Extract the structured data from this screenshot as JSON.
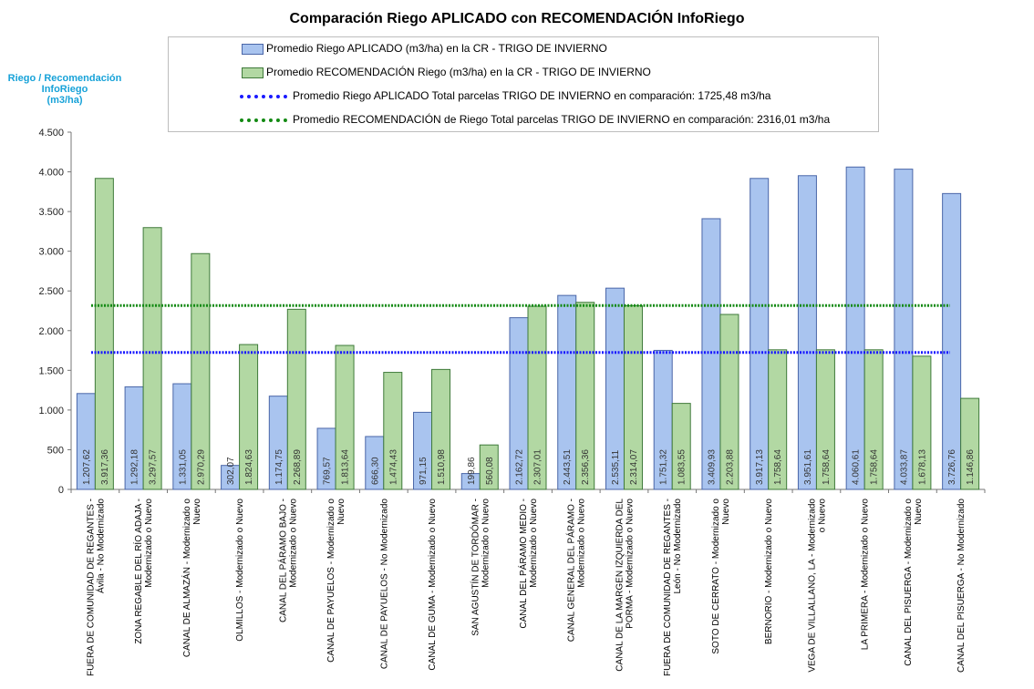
{
  "chart_data": {
    "type": "bar",
    "title": "Comparación Riego APLICADO con RECOMENDACIÓN InfoRiego",
    "ylabel_lines": [
      "Riego / Recomendación",
      "InfoRiego",
      "(m3/ha)"
    ],
    "ylim": [
      0,
      4500
    ],
    "yticks": [
      {
        "value": 0,
        "label": "0"
      },
      {
        "value": 500,
        "label": "500"
      },
      {
        "value": 1000,
        "label": "1.000"
      },
      {
        "value": 1500,
        "label": "1.500"
      },
      {
        "value": 2000,
        "label": "2.000"
      },
      {
        "value": 2500,
        "label": "2.500"
      },
      {
        "value": 3000,
        "label": "3.000"
      },
      {
        "value": 3500,
        "label": "3.500"
      },
      {
        "value": 4000,
        "label": "4.000"
      },
      {
        "value": 4500,
        "label": "4.500"
      }
    ],
    "categories": [
      [
        "FUERA DE COMUNIDAD DE REGANTES -",
        "Ávila - No Modernizado"
      ],
      [
        "ZONA REGABLE DEL RÍO ADAJA -",
        "Modernizado o Nuevo"
      ],
      [
        "CANAL DE ALMAZÁN - Modernizado o",
        "Nuevo"
      ],
      [
        "OLMILLOS - Modernizado o Nuevo"
      ],
      [
        "CANAL DEL PÁRAMO BAJO -",
        "Modernizado o Nuevo"
      ],
      [
        "CANAL DE PAYUELOS - Modernizado o",
        "Nuevo"
      ],
      [
        "CANAL DE PAYUELOS - No Modernizado"
      ],
      [
        "CANAL DE GUMA - Modernizado o Nuevo"
      ],
      [
        "SAN AGUSTÍN DE TORDÓMAR -",
        "Modernizado o Nuevo"
      ],
      [
        "CANAL DEL PÁRAMO MEDIO -",
        "Modernizado o Nuevo"
      ],
      [
        "CANAL GENERAL DEL PÁRAMO -",
        "Modernizado o Nuevo"
      ],
      [
        "CANAL DE LA MARGEN IZQUIERDA DEL",
        "PORMA - Modernizado o Nuevo"
      ],
      [
        "FUERA DE COMUNIDAD DE REGANTES -",
        "León - No Modernizado"
      ],
      [
        "SOTO DE CERRATO - Modernizado o",
        "Nuevo"
      ],
      [
        "BERNORIO - Modernizado o Nuevo"
      ],
      [
        "VEGA DE VILLALLANO, LA - Modernizado",
        "o Nuevo"
      ],
      [
        "LA PRIMERA - Modernizado o Nuevo"
      ],
      [
        "CANAL DEL PISUERGA - Modernizado o",
        "Nuevo"
      ],
      [
        "CANAL DEL PISUERGA - No Modernizado"
      ]
    ],
    "series": [
      {
        "name": "Promedio Riego APLICADO (m3/ha) en la CR - TRIGO DE INVIERNO",
        "color": "#a9c4ef",
        "border": "#4a66a8",
        "values": [
          1207.62,
          1292.18,
          1331.05,
          302.07,
          1174.75,
          769.57,
          666.3,
          971.15,
          199.86,
          2162.72,
          2443.51,
          2535.11,
          1751.32,
          3409.93,
          3917.13,
          3951.61,
          4060.61,
          4033.87,
          3726.76
        ],
        "labels": [
          "1.207,62",
          "1.292,18",
          "1.331,05",
          "302,07",
          "1.174,75",
          "769,57",
          "666,30",
          "971,15",
          "199,86",
          "2.162,72",
          "2.443,51",
          "2.535,11",
          "1.751,32",
          "3.409,93",
          "3.917,13",
          "3.951,61",
          "4.060,61",
          "4.033,87",
          "3.726,76"
        ]
      },
      {
        "name": "Promedio RECOMENDACIÓN Riego (m3/ha) en la CR - TRIGO DE INVIERNO",
        "color": "#b2d8a3",
        "border": "#3f7a3a",
        "values": [
          3917.36,
          3297.57,
          2970.29,
          1824.63,
          2268.89,
          1813.64,
          1474.43,
          1510.98,
          560.08,
          2307.01,
          2356.36,
          2314.07,
          1083.55,
          2203.88,
          1758.64,
          1758.64,
          1758.64,
          1678.13,
          1146.86
        ],
        "labels": [
          "3.917,36",
          "3.297,57",
          "2.970,29",
          "1.824,63",
          "2.268,89",
          "1.813,64",
          "1.474,43",
          "1.510,98",
          "560,08",
          "2.307,01",
          "2.356,36",
          "2.314,07",
          "1.083,55",
          "2.203,88",
          "1.758,64",
          "1.758,64",
          "1.758,64",
          "1.678,13",
          "1.146,86"
        ]
      }
    ],
    "reference_lines": [
      {
        "name": "Promedio Riego APLICADO Total parcelas TRIGO DE INVIERNO en comparación: 1725,48 m3/ha",
        "value": 1725.48,
        "color": "#1a1aff"
      },
      {
        "name": "Promedio RECOMENDACIÓN de Riego Total parcelas TRIGO DE INVIERNO en comparación: 2316,01 m3/ha",
        "value": 2316.01,
        "color": "#138a13"
      }
    ],
    "legend_position": "top"
  }
}
